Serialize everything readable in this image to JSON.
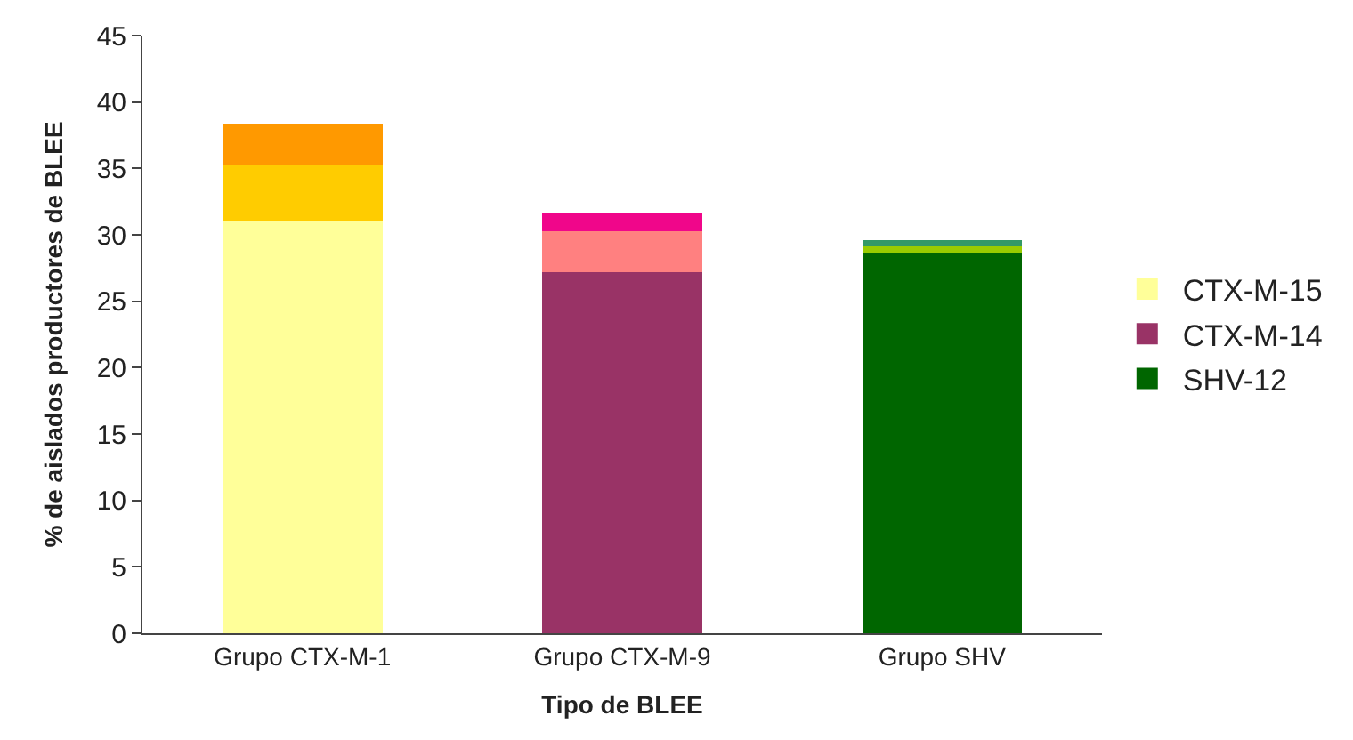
{
  "chart_data": {
    "type": "bar",
    "stacked": true,
    "xlabel": "Tipo de BLEE",
    "ylabel": "% de aislados productores de BLEE",
    "categories": [
      "Grupo CTX-M-1",
      "Grupo CTX-M-9",
      "Grupo SHV"
    ],
    "series": [
      {
        "name": "CTX-M-15",
        "color": "#ffff99",
        "values": [
          31.0,
          null,
          null
        ]
      },
      {
        "name": "CTX-M-14",
        "color": "#993366",
        "values": [
          null,
          27.2,
          null
        ]
      },
      {
        "name": "SHV-12",
        "color": "#006600",
        "values": [
          null,
          null,
          28.6
        ]
      },
      {
        "color": "#ffcc00",
        "values": [
          4.3,
          null,
          null
        ]
      },
      {
        "color": "#ff8080",
        "values": [
          null,
          3.1,
          null
        ]
      },
      {
        "color": "#99cc00",
        "values": [
          null,
          null,
          0.5
        ]
      },
      {
        "color": "#ff9900",
        "values": [
          3.1,
          null,
          null
        ]
      },
      {
        "color": "#f0068a",
        "values": [
          null,
          1.3,
          null
        ]
      },
      {
        "color": "#339966",
        "values": [
          null,
          null,
          0.5
        ]
      }
    ],
    "ylim": [
      0,
      45
    ],
    "yticks": [
      0,
      5,
      10,
      15,
      20,
      25,
      30,
      35,
      40,
      45
    ],
    "legend": "right"
  }
}
